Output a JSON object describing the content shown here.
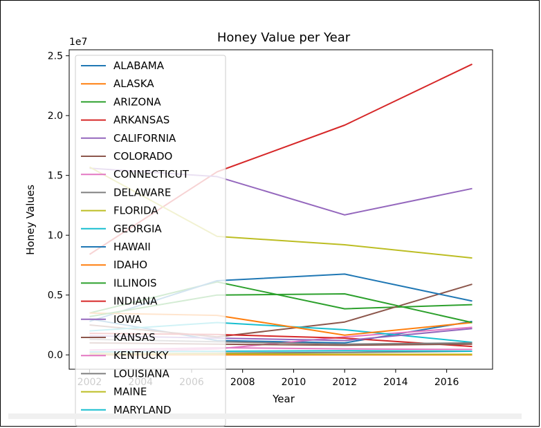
{
  "chart_data": {
    "type": "line",
    "title": "Honey Value per Year",
    "xlabel": "Year",
    "ylabel": "Honey Values",
    "y_offset_label": "1e7",
    "x_ticks": [
      2002,
      2004,
      2006,
      2008,
      2010,
      2012,
      2014,
      2016
    ],
    "y_ticks": [
      0.0,
      0.5,
      1.0,
      1.5,
      2.0,
      2.5
    ],
    "y_tick_labels": [
      "0.0",
      "0.5",
      "1.0",
      "1.5",
      "2.0",
      "2.5"
    ],
    "xlim": [
      2001.2,
      2017.8
    ],
    "ylim": [
      -1200000,
      25500000
    ],
    "x": [
      2002,
      2007,
      2012,
      2017
    ],
    "legend_position": "upper-left",
    "series": [
      {
        "name": "ALABAMA",
        "color": "#1f77b4",
        "values": [
          3000000,
          1200000,
          1000000,
          2800000
        ]
      },
      {
        "name": "ALASKA",
        "color": "#ff7f0e",
        "values": [
          0,
          0,
          0,
          0
        ]
      },
      {
        "name": "ARIZONA",
        "color": "#2ca02c",
        "values": [
          3500000,
          6100000,
          3850000,
          4200000
        ]
      },
      {
        "name": "ARKANSAS",
        "color": "#d62728",
        "values": [
          8400000,
          15300000,
          19200000,
          24300000
        ]
      },
      {
        "name": "CALIFORNIA",
        "color": "#9467bd",
        "values": [
          15600000,
          14900000,
          11700000,
          13900000
        ]
      },
      {
        "name": "COLORADO",
        "color": "#8c564b",
        "values": [
          2500000,
          1500000,
          2750000,
          5900000
        ]
      },
      {
        "name": "CONNECTICUT",
        "color": "#e377c2",
        "values": [
          200000,
          500000,
          1500000,
          2300000
        ]
      },
      {
        "name": "DELAWARE",
        "color": "#7f7f7f",
        "values": [
          50000,
          150000,
          200000,
          300000
        ]
      },
      {
        "name": "FLORIDA",
        "color": "#bcbd22",
        "values": [
          15700000,
          9900000,
          9200000,
          8100000
        ]
      },
      {
        "name": "GEORGIA",
        "color": "#17becf",
        "values": [
          2000000,
          2700000,
          2100000,
          1050000
        ]
      },
      {
        "name": "HAWAII",
        "color": "#1f77b4",
        "values": [
          2800000,
          6200000,
          6750000,
          4500000
        ]
      },
      {
        "name": "IDAHO",
        "color": "#ff7f0e",
        "values": [
          3500000,
          3300000,
          1650000,
          2700000
        ]
      },
      {
        "name": "ILLINOIS",
        "color": "#2ca02c",
        "values": [
          3200000,
          5000000,
          5100000,
          2700000
        ]
      },
      {
        "name": "INDIANA",
        "color": "#d62728",
        "values": [
          1800000,
          1700000,
          1400000,
          700000
        ]
      },
      {
        "name": "IOWA",
        "color": "#9467bd",
        "values": [
          1600000,
          1400000,
          1200000,
          2200000
        ]
      },
      {
        "name": "KANSAS",
        "color": "#8c564b",
        "values": [
          1000000,
          900000,
          800000,
          900000
        ]
      },
      {
        "name": "KENTUCKY",
        "color": "#e377c2",
        "values": [
          400000,
          600000,
          500000,
          450000
        ]
      },
      {
        "name": "LOUISIANA",
        "color": "#7f7f7f",
        "values": [
          1300000,
          1100000,
          900000,
          1000000
        ]
      },
      {
        "name": "MAINE",
        "color": "#bcbd22",
        "values": [
          100000,
          100000,
          50000,
          50000
        ]
      },
      {
        "name": "MARYLAND",
        "color": "#17becf",
        "values": [
          250000,
          300000,
          350000,
          300000
        ]
      }
    ]
  }
}
